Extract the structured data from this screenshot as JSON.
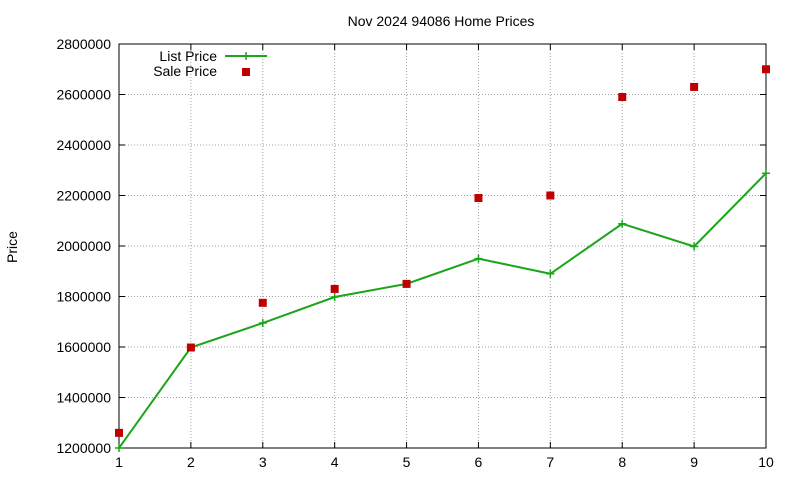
{
  "chart_data": {
    "type": "line",
    "title": "Nov 2024 94086 Home Prices",
    "xlabel": "",
    "ylabel": "Price",
    "x": [
      1,
      2,
      3,
      4,
      5,
      6,
      7,
      8,
      9,
      10
    ],
    "xlim": [
      1,
      10
    ],
    "ylim": [
      1200000,
      2800000
    ],
    "xticks": [
      1,
      2,
      3,
      4,
      5,
      6,
      7,
      8,
      9,
      10
    ],
    "yticks": [
      1200000,
      1400000,
      1600000,
      1800000,
      2000000,
      2200000,
      2400000,
      2600000,
      2800000
    ],
    "grid": true,
    "legend_position": "top-left",
    "series": [
      {
        "name": "List Price",
        "style": "line with plus markers",
        "color": "#1aa51a",
        "values": [
          1200000,
          1598000,
          1695000,
          1798000,
          1850000,
          1950000,
          1890000,
          2088000,
          1998000,
          2288000
        ]
      },
      {
        "name": "Sale Price",
        "style": "square markers",
        "color": "#c00000",
        "values": [
          1260000,
          1598000,
          1775000,
          1830000,
          1850000,
          2190000,
          2200000,
          2590000,
          2630000,
          2700000
        ]
      }
    ]
  }
}
